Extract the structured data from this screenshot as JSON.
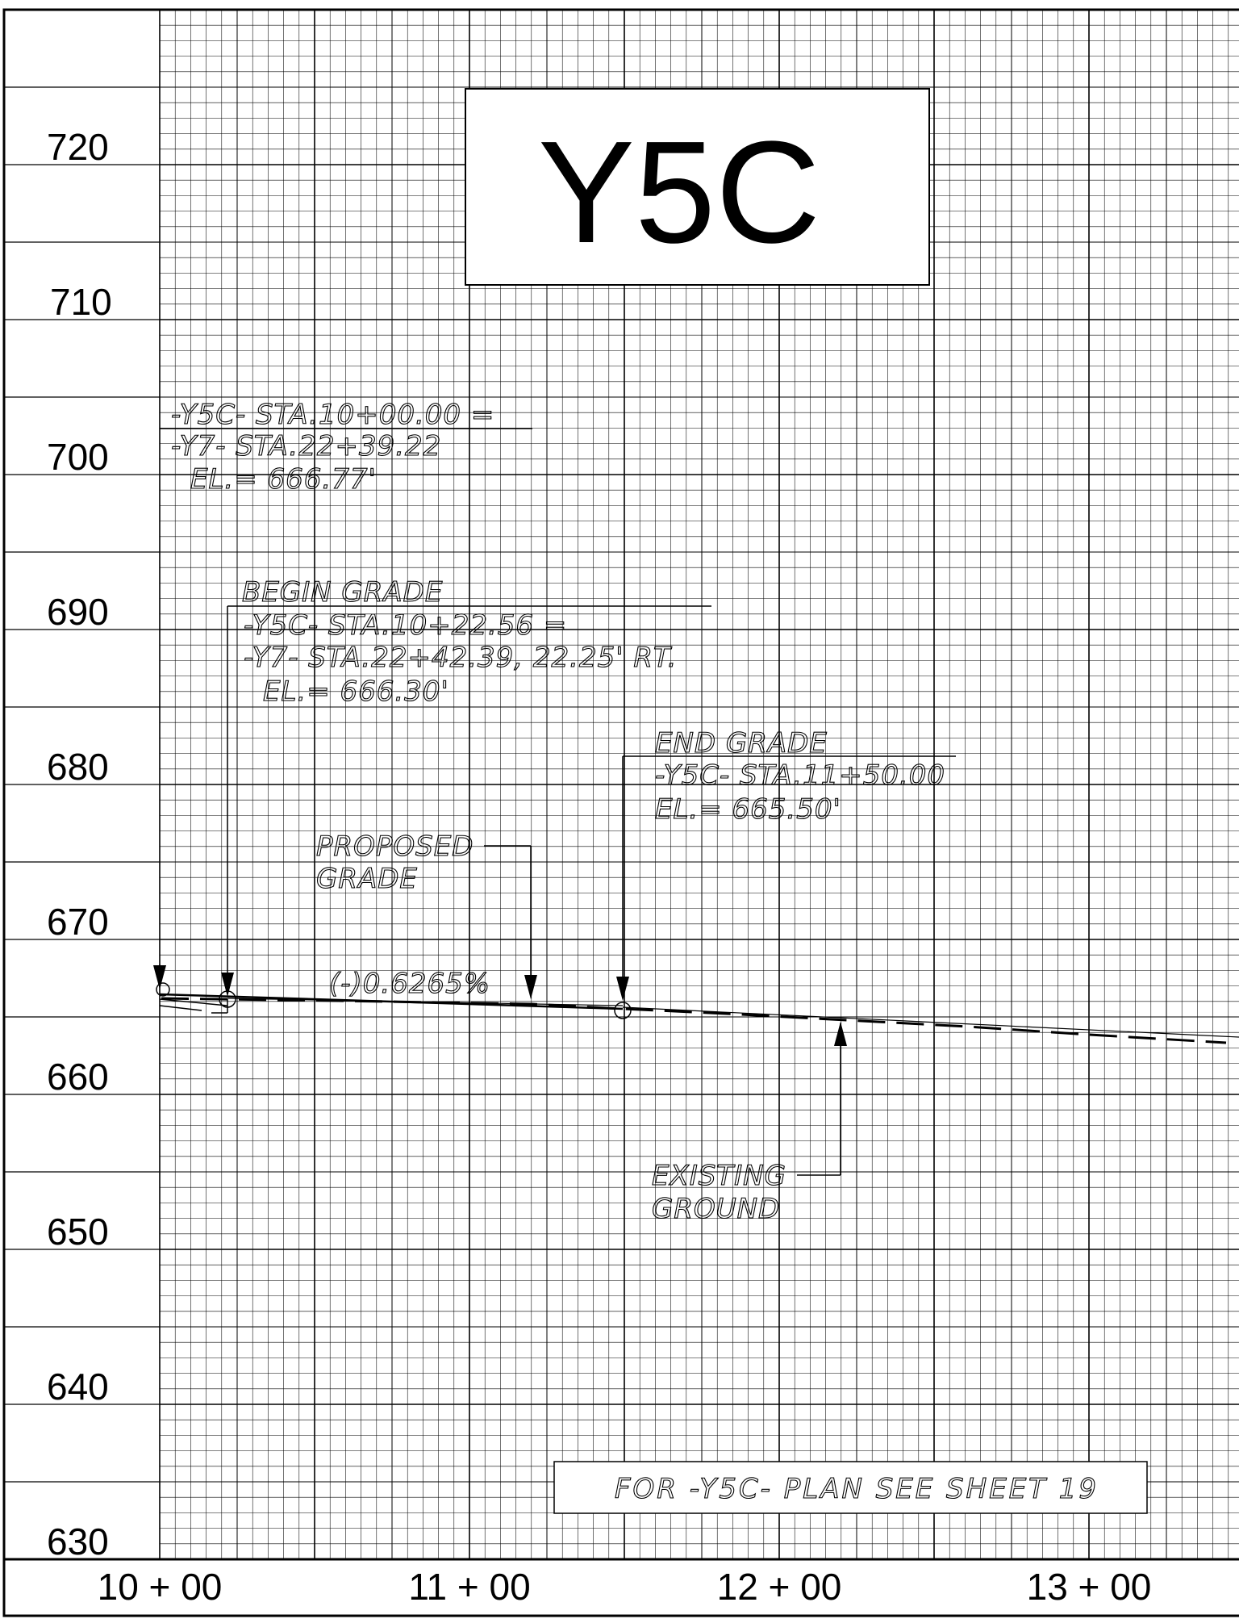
{
  "sheet": {
    "title": "Y5C",
    "plan_reference": "FOR -Y5C- PLAN SEE SHEET 19"
  },
  "axis": {
    "elevations": [
      "720",
      "710",
      "700",
      "690",
      "680",
      "670",
      "660",
      "650",
      "640",
      "630"
    ],
    "stations": [
      "10 + 00",
      "11 + 00",
      "12 + 00",
      "13 + 00"
    ]
  },
  "notes": {
    "tie_in": {
      "line1": "-Y5C- STA.10+00.00 =",
      "line2": "-Y7- STA.22+39.22",
      "line3": "EL.= 666.77'"
    },
    "begin_grade": {
      "line1": "BEGIN GRADE",
      "line2": "-Y5C- STA.10+22.56 =",
      "line3": "-Y7- STA.22+42.39, 22.25' RT.",
      "line4": "EL.= 666.30'"
    },
    "end_grade": {
      "line1": "END GRADE",
      "line2": "-Y5C- STA.11+50.00",
      "line3": "EL.= 665.50'"
    },
    "proposed_grade": {
      "line1": "PROPOSED",
      "line2": "GRADE"
    },
    "grade_percent": "(-)0.6265%",
    "existing_ground": {
      "line1": "EXISTING",
      "line2": "GROUND"
    }
  },
  "colors": {
    "ink": "#000000",
    "paper": "#ffffff"
  }
}
